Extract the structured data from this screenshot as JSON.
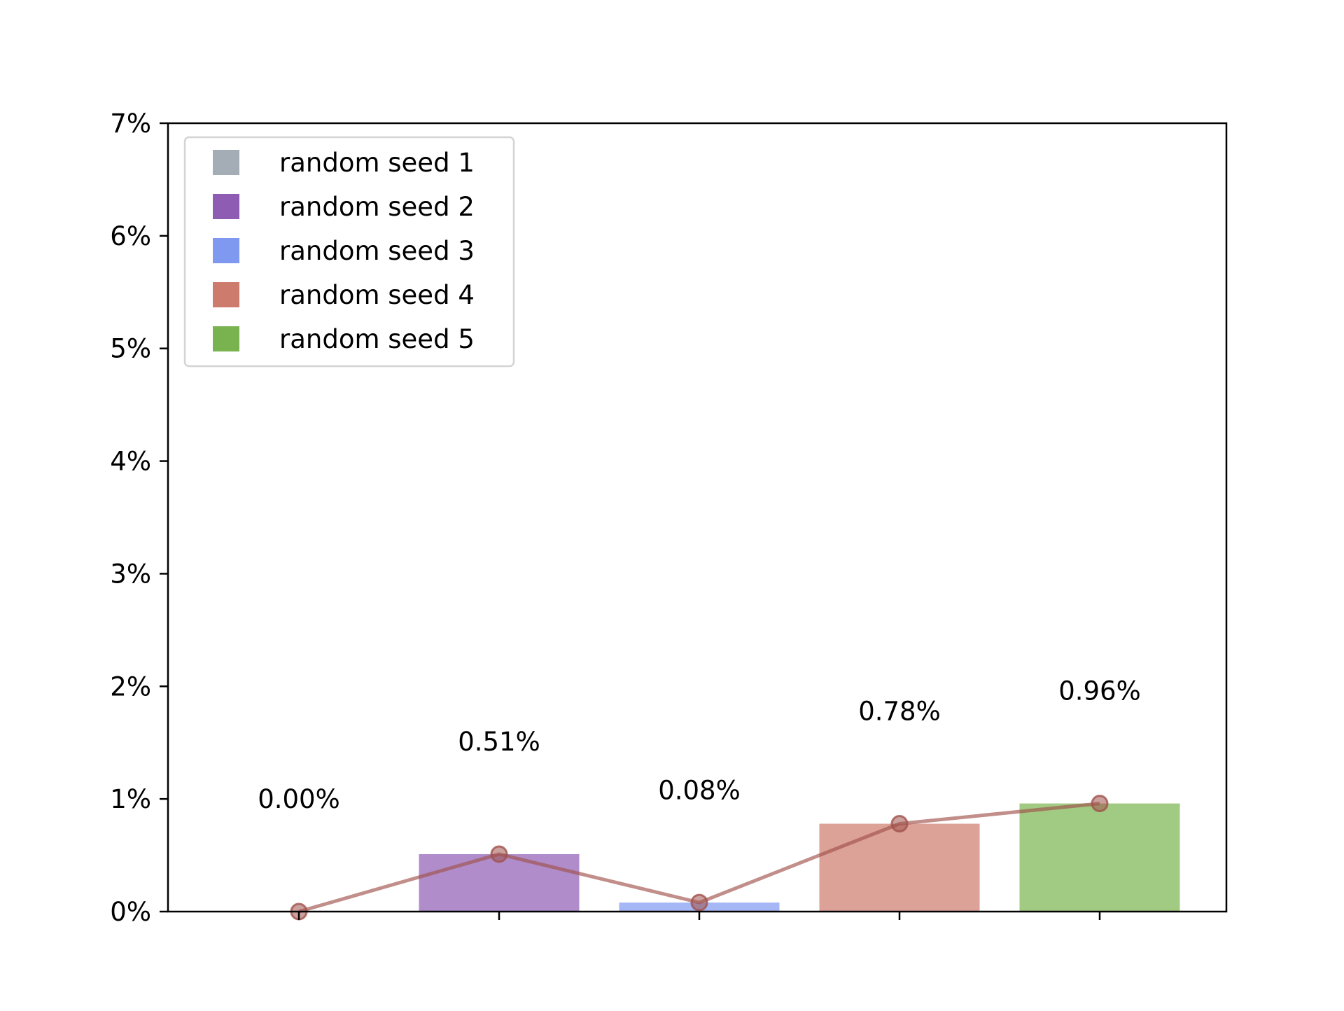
{
  "chart_data": {
    "type": "bar",
    "categories": [
      "random seed 1",
      "random seed 2",
      "random seed 3",
      "random seed 4",
      "random seed 5"
    ],
    "values": [
      0.0,
      0.51,
      0.08,
      0.78,
      0.96
    ],
    "value_labels": [
      "0.00%",
      "0.51%",
      "0.08%",
      "0.78%",
      "0.96%"
    ],
    "bar_colors": [
      "#a4acb5",
      "#8f5cb3",
      "#7f98f0",
      "#cd7b6c",
      "#79b34f"
    ],
    "line_color": "#a0524c",
    "ylim": [
      0,
      7
    ],
    "yticks": [
      0,
      1,
      2,
      3,
      4,
      5,
      6,
      7
    ],
    "ytick_labels": [
      "0%",
      "1%",
      "2%",
      "3%",
      "4%",
      "5%",
      "6%",
      "7%"
    ],
    "legend": {
      "placement": "top-left",
      "entries": [
        "random seed 1",
        "random seed 2",
        "random seed 3",
        "random seed 4",
        "random seed 5"
      ]
    },
    "grid": false,
    "title": "",
    "xlabel": "",
    "ylabel": ""
  }
}
